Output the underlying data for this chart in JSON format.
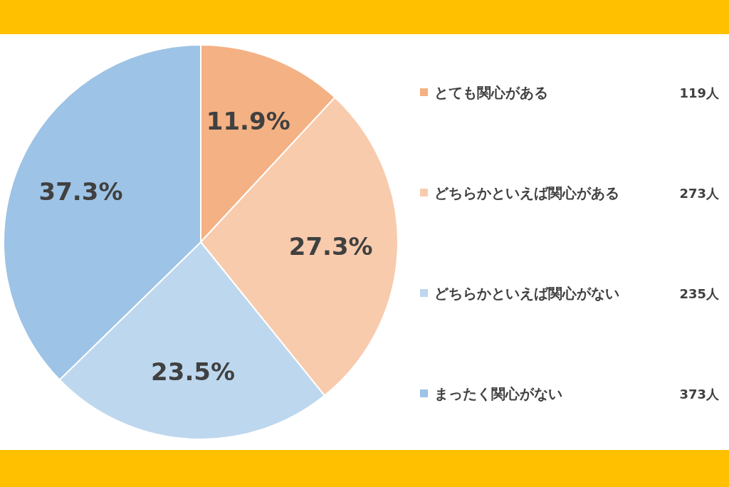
{
  "chart_data": {
    "type": "pie",
    "categories": [
      "とても関心がある",
      "どちらかといえば関心がある",
      "どちらかといえば関心がない",
      "まったく関心がない"
    ],
    "values": [
      11.9,
      27.3,
      23.5,
      37.3
    ],
    "colors": [
      "#f4b183",
      "#f8cbad",
      "#bdd7ee",
      "#9dc3e6"
    ],
    "value_labels": [
      "11.9%",
      "27.3%",
      "23.5%",
      "37.3%"
    ],
    "legend": "right",
    "annotations": [
      "119人",
      "273人",
      "235人",
      "373人"
    ]
  }
}
